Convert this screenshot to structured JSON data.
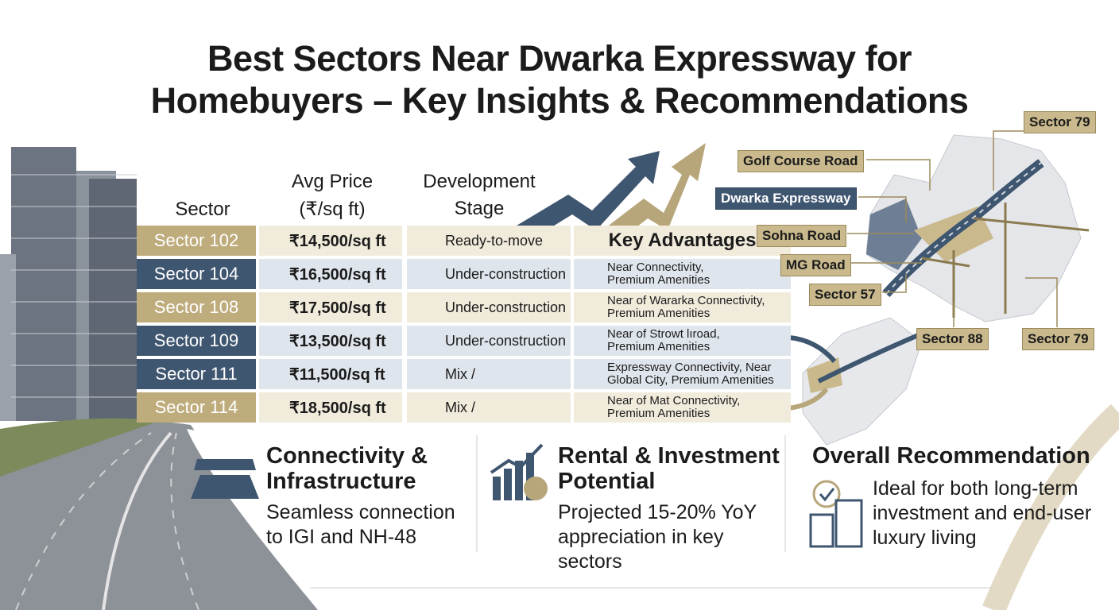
{
  "title_lines": [
    "Best Sectors Near Dwarka Expressway for",
    "Homebuyers – Key Insights & Recommendations"
  ],
  "table": {
    "headers": {
      "sector": "Sector",
      "price_lines": [
        "Avg Price",
        "(₹/sq ft)"
      ],
      "stage_lines": [
        "Development",
        "Stage"
      ],
      "advantages": "Key Advantages"
    },
    "rows": [
      {
        "sector": "Sector 102",
        "price": "₹14,500/sq ft",
        "stage": "Ready-to-move"
      },
      {
        "sector": "Sector 104",
        "price": "₹16,500/sq ft",
        "stage": "Under-construction",
        "advantages": [
          "Near Connectivity,",
          "Premium Amenities"
        ]
      },
      {
        "sector": "Sector 108",
        "price": "₹17,500/sq ft",
        "stage": "Under-construction",
        "advantages": [
          "Near of Wararka Connectivity,",
          "Premium Amenities"
        ]
      },
      {
        "sector": "Sector 109",
        "price": "₹13,500/sq ft",
        "stage": "Under-construction",
        "advantages": [
          "Near of Strowt lıroad,",
          "Premium Amenities"
        ]
      },
      {
        "sector": "Sector 111",
        "price": "₹11,500/sq ft",
        "stage": "Mix /",
        "advantages": [
          "Expressway Connectivity, Near",
          "Global City, Premium Amenities"
        ]
      },
      {
        "sector": "Sector 114",
        "price": "₹18,500/sq ft",
        "stage": "Mix /",
        "advantages": [
          "Near of Mat Connectivity,",
          "Premium Amenities"
        ]
      }
    ]
  },
  "map_labels": [
    "Sector 79",
    "Golf Course Road",
    "Dwarka Expressway",
    "Sohna Road",
    "MG Road",
    "Sector 57",
    "Sector 88",
    "Sector 79"
  ],
  "panels": [
    {
      "heading": "Connectivity & Infrastructure",
      "text": "Seamless connection to IGI and NH-48"
    },
    {
      "heading": "Rental & Investment Potential",
      "text": "Projected 15-20% YoY appreciation in key sectors"
    },
    {
      "heading": "Overall Recommendation",
      "text": "Ideal for both long-term investment and end-user luxury living"
    }
  ]
}
